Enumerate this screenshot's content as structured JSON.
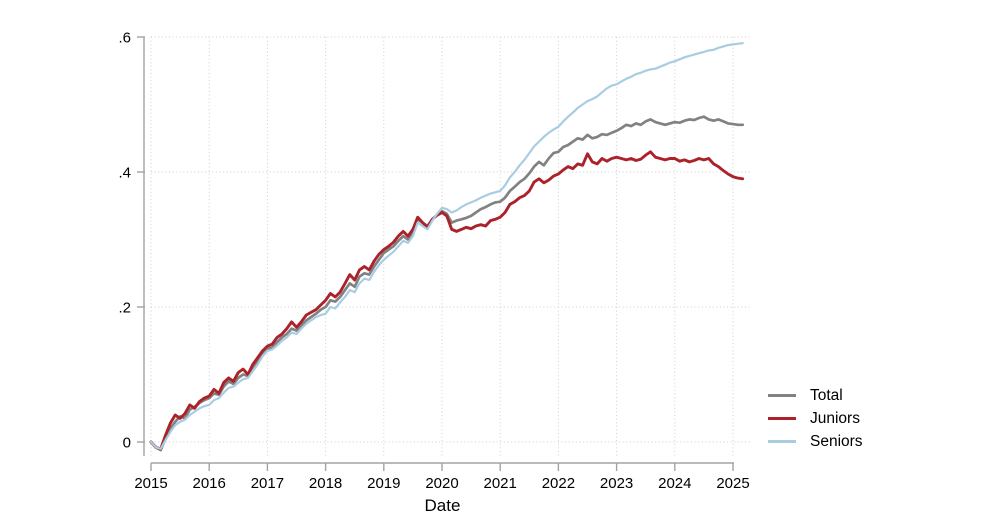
{
  "chart_data": {
    "type": "line",
    "title": "",
    "xlabel": "Date",
    "ylabel": "",
    "grid": true,
    "legend_position": "right-middle",
    "xlim": [
      2014.9,
      2025.45
    ],
    "ylim": [
      -0.02,
      0.62
    ],
    "x_ticks": [
      2015,
      2016,
      2017,
      2018,
      2019,
      2020,
      2021,
      2022,
      2023,
      2024,
      2025
    ],
    "y_ticks": [
      0,
      0.2,
      0.4,
      0.6
    ],
    "y_tick_labels": [
      "0",
      ".2",
      ".4",
      ".6"
    ],
    "x_start": 2015.0,
    "x_interval_years": 0.083333,
    "series": [
      {
        "name": "Total",
        "color": "#828282",
        "width": 2.7,
        "values": [
          0.0,
          -0.008,
          -0.012,
          0.005,
          0.02,
          0.03,
          0.038,
          0.035,
          0.048,
          0.052,
          0.058,
          0.062,
          0.065,
          0.072,
          0.07,
          0.082,
          0.09,
          0.086,
          0.095,
          0.1,
          0.098,
          0.11,
          0.12,
          0.13,
          0.138,
          0.14,
          0.148,
          0.155,
          0.16,
          0.168,
          0.165,
          0.172,
          0.18,
          0.185,
          0.19,
          0.196,
          0.2,
          0.21,
          0.208,
          0.215,
          0.225,
          0.235,
          0.23,
          0.245,
          0.25,
          0.248,
          0.26,
          0.27,
          0.28,
          0.285,
          0.29,
          0.298,
          0.305,
          0.3,
          0.31,
          0.33,
          0.325,
          0.32,
          0.33,
          0.336,
          0.342,
          0.338,
          0.325,
          0.328,
          0.33,
          0.332,
          0.335,
          0.34,
          0.345,
          0.348,
          0.352,
          0.355,
          0.356,
          0.362,
          0.372,
          0.378,
          0.385,
          0.39,
          0.398,
          0.408,
          0.415,
          0.41,
          0.42,
          0.428,
          0.43,
          0.437,
          0.44,
          0.445,
          0.45,
          0.448,
          0.455,
          0.45,
          0.452,
          0.456,
          0.455,
          0.458,
          0.461,
          0.465,
          0.47,
          0.468,
          0.472,
          0.47,
          0.475,
          0.478,
          0.474,
          0.472,
          0.47,
          0.472,
          0.474,
          0.473,
          0.476,
          0.478,
          0.477,
          0.48,
          0.482,
          0.478,
          0.476,
          0.478,
          0.475,
          0.472,
          0.471,
          0.47,
          0.47
        ]
      },
      {
        "name": "Juniors",
        "color": "#ab222a",
        "width": 2.9,
        "values": [
          0.0,
          -0.008,
          -0.01,
          0.01,
          0.028,
          0.04,
          0.035,
          0.042,
          0.055,
          0.05,
          0.06,
          0.065,
          0.068,
          0.078,
          0.072,
          0.088,
          0.095,
          0.09,
          0.103,
          0.108,
          0.1,
          0.115,
          0.125,
          0.135,
          0.142,
          0.145,
          0.155,
          0.16,
          0.168,
          0.178,
          0.17,
          0.178,
          0.188,
          0.192,
          0.196,
          0.203,
          0.21,
          0.22,
          0.215,
          0.222,
          0.235,
          0.248,
          0.24,
          0.255,
          0.26,
          0.255,
          0.268,
          0.278,
          0.285,
          0.29,
          0.296,
          0.305,
          0.312,
          0.305,
          0.315,
          0.333,
          0.325,
          0.318,
          0.33,
          0.336,
          0.34,
          0.335,
          0.315,
          0.312,
          0.315,
          0.318,
          0.316,
          0.32,
          0.322,
          0.32,
          0.328,
          0.33,
          0.333,
          0.34,
          0.352,
          0.356,
          0.362,
          0.365,
          0.372,
          0.385,
          0.39,
          0.384,
          0.388,
          0.394,
          0.397,
          0.403,
          0.408,
          0.405,
          0.412,
          0.41,
          0.427,
          0.415,
          0.412,
          0.42,
          0.416,
          0.42,
          0.422,
          0.42,
          0.418,
          0.42,
          0.417,
          0.419,
          0.425,
          0.43,
          0.422,
          0.42,
          0.418,
          0.42,
          0.42,
          0.416,
          0.418,
          0.415,
          0.417,
          0.42,
          0.418,
          0.42,
          0.412,
          0.408,
          0.402,
          0.397,
          0.393,
          0.391,
          0.39
        ]
      },
      {
        "name": "Seniors",
        "color": "#a8cde2",
        "width": 2.2,
        "values": [
          0.0,
          -0.008,
          -0.01,
          0.003,
          0.015,
          0.025,
          0.03,
          0.033,
          0.04,
          0.045,
          0.05,
          0.053,
          0.055,
          0.062,
          0.065,
          0.073,
          0.08,
          0.082,
          0.088,
          0.093,
          0.095,
          0.105,
          0.115,
          0.127,
          0.135,
          0.137,
          0.143,
          0.15,
          0.155,
          0.162,
          0.16,
          0.168,
          0.175,
          0.18,
          0.185,
          0.188,
          0.19,
          0.2,
          0.198,
          0.207,
          0.215,
          0.225,
          0.222,
          0.235,
          0.242,
          0.24,
          0.252,
          0.262,
          0.27,
          0.276,
          0.282,
          0.29,
          0.298,
          0.295,
          0.305,
          0.325,
          0.32,
          0.315,
          0.328,
          0.338,
          0.347,
          0.345,
          0.34,
          0.343,
          0.348,
          0.352,
          0.355,
          0.358,
          0.362,
          0.365,
          0.368,
          0.37,
          0.372,
          0.38,
          0.392,
          0.4,
          0.41,
          0.418,
          0.428,
          0.438,
          0.445,
          0.452,
          0.458,
          0.463,
          0.467,
          0.475,
          0.482,
          0.488,
          0.495,
          0.5,
          0.505,
          0.508,
          0.512,
          0.518,
          0.524,
          0.528,
          0.53,
          0.534,
          0.538,
          0.541,
          0.545,
          0.547,
          0.55,
          0.552,
          0.553,
          0.556,
          0.559,
          0.562,
          0.564,
          0.567,
          0.57,
          0.572,
          0.574,
          0.576,
          0.578,
          0.58,
          0.581,
          0.584,
          0.586,
          0.588,
          0.589,
          0.59,
          0.591
        ]
      }
    ]
  },
  "legend": {
    "items": [
      {
        "label": "Total"
      },
      {
        "label": "Juniors"
      },
      {
        "label": "Seniors"
      }
    ]
  }
}
